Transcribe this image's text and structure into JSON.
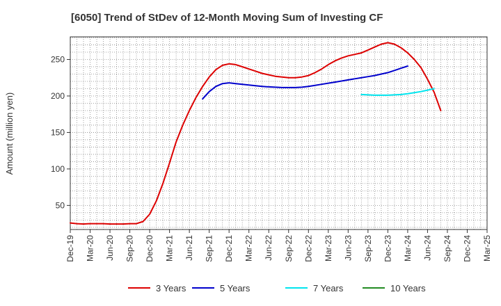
{
  "chart_data": {
    "type": "line",
    "title": "[6050]  Trend of StDev of 12-Month Moving Sum of Investing CF",
    "xlabel": "",
    "ylabel": "Amount (million yen)",
    "ylim": [
      17,
      281
    ],
    "yticks": [
      50,
      100,
      150,
      200,
      250
    ],
    "grid": true,
    "legend_position": "bottom",
    "x_tick_labels": [
      "Dec-19",
      "Mar-20",
      "Jun-20",
      "Sep-20",
      "Dec-20",
      "Mar-21",
      "Jun-21",
      "Sep-21",
      "Dec-21",
      "Mar-22",
      "Jun-22",
      "Sep-22",
      "Dec-22",
      "Mar-23",
      "Jun-23",
      "Sep-23",
      "Dec-23",
      "Mar-24",
      "Jun-24",
      "Sep-24",
      "Dec-24",
      "Mar-25"
    ],
    "x_months": [
      "2019-12",
      "2020-01",
      "2020-02",
      "2020-03",
      "2020-04",
      "2020-05",
      "2020-06",
      "2020-07",
      "2020-08",
      "2020-09",
      "2020-10",
      "2020-11",
      "2020-12",
      "2021-01",
      "2021-02",
      "2021-03",
      "2021-04",
      "2021-05",
      "2021-06",
      "2021-07",
      "2021-08",
      "2021-09",
      "2021-10",
      "2021-11",
      "2021-12",
      "2022-01",
      "2022-02",
      "2022-03",
      "2022-04",
      "2022-05",
      "2022-06",
      "2022-07",
      "2022-08",
      "2022-09",
      "2022-10",
      "2022-11",
      "2022-12",
      "2023-01",
      "2023-02",
      "2023-03",
      "2023-04",
      "2023-05",
      "2023-06",
      "2023-07",
      "2023-08",
      "2023-09",
      "2023-10",
      "2023-11",
      "2023-12",
      "2024-01",
      "2024-02",
      "2024-03",
      "2024-04",
      "2024-05",
      "2024-06",
      "2024-07",
      "2024-08",
      "2024-09",
      "2024-10",
      "2024-11",
      "2024-12",
      "2025-01",
      "2025-02",
      "2025-03"
    ],
    "series": [
      {
        "name": "3 Years",
        "color": "#dd0000",
        "start": "2019-12",
        "values": [
          26,
          25,
          24.5,
          25,
          25,
          25,
          24.5,
          24.5,
          24.5,
          25,
          25,
          28,
          38,
          56,
          80,
          108,
          137,
          160,
          180,
          198,
          213,
          226,
          236,
          242,
          244,
          243,
          240,
          237,
          234,
          231,
          229,
          227,
          226,
          225,
          225,
          226,
          228,
          232,
          237,
          243,
          248,
          252,
          255,
          257,
          259,
          263,
          267,
          271,
          273,
          271,
          266,
          259,
          250,
          239,
          223,
          205,
          180
        ]
      },
      {
        "name": "5 Years",
        "color": "#0000cc",
        "start": "2021-08",
        "values": [
          196,
          206,
          213,
          217,
          218,
          217,
          216,
          215,
          214,
          213,
          212.5,
          212,
          211.5,
          211.5,
          211.5,
          212,
          213,
          214.5,
          216,
          217.5,
          219,
          220.5,
          222,
          223.5,
          225,
          226.5,
          228,
          230,
          232,
          235,
          238,
          241
        ]
      },
      {
        "name": "7 Years",
        "color": "#00e5ee",
        "start": "2023-08",
        "values": [
          202,
          201.5,
          201,
          201,
          201,
          201.5,
          202,
          203,
          204.5,
          206,
          208,
          210
        ]
      },
      {
        "name": "10 Years",
        "color": "#228b22",
        "start": "2023-08",
        "values": []
      }
    ]
  }
}
